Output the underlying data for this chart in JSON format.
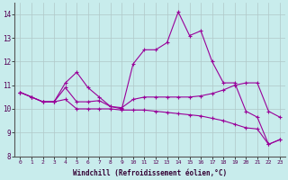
{
  "background_color": "#c8ecec",
  "line_color": "#990099",
  "grid_color": "#b0c8c8",
  "xlabel": "Windchill (Refroidissement éolien,°C)",
  "ylim": [
    8,
    14.5
  ],
  "xlim": [
    -0.5,
    23.5
  ],
  "yticks": [
    8,
    9,
    10,
    11,
    12,
    13,
    14
  ],
  "xticks": [
    0,
    1,
    2,
    3,
    4,
    5,
    6,
    7,
    8,
    9,
    10,
    11,
    12,
    13,
    14,
    15,
    16,
    17,
    18,
    19,
    20,
    21,
    22,
    23
  ],
  "series": [
    [
      10.7,
      10.5,
      10.3,
      10.3,
      11.1,
      11.55,
      10.9,
      10.5,
      10.1,
      10.0,
      11.9,
      12.5,
      12.5,
      12.8,
      14.1,
      13.1,
      13.3,
      12.0,
      11.1,
      11.1,
      9.9,
      9.65,
      8.5,
      8.7
    ],
    [
      10.7,
      10.5,
      10.3,
      10.3,
      10.9,
      10.3,
      10.3,
      10.35,
      10.1,
      10.05,
      10.4,
      10.5,
      10.5,
      10.5,
      10.5,
      10.5,
      10.55,
      10.65,
      10.8,
      11.0,
      11.1,
      11.1,
      9.9,
      9.65
    ],
    [
      10.7,
      10.5,
      10.3,
      10.3,
      10.4,
      10.0,
      10.0,
      10.0,
      10.0,
      9.95,
      9.95,
      9.95,
      9.9,
      9.85,
      9.8,
      9.75,
      9.7,
      9.6,
      9.5,
      9.35,
      9.2,
      9.15,
      8.5,
      8.7
    ]
  ]
}
